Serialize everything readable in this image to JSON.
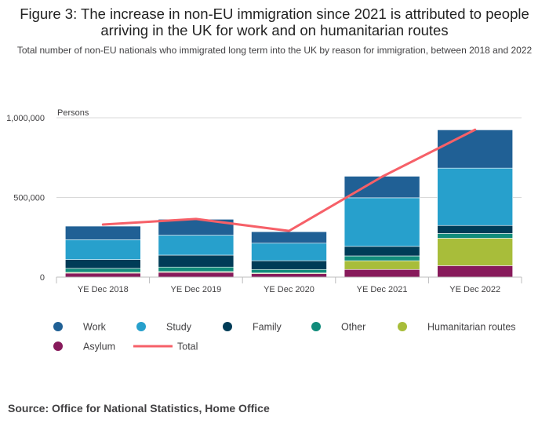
{
  "title": "Figure 3: The increase in non-EU immigration since 2021 is attributed to people arriving in the UK for work and on humanitarian routes",
  "subtitle": "Total number of non-EU nationals who immigrated long term into the UK by reason for immigration, between 2018 and 2022",
  "source": "Source: Office for National Statistics, Home Office",
  "chart_data": {
    "type": "bar",
    "stacked": true,
    "ylabel": "Persons",
    "ylim": [
      0,
      1000000
    ],
    "yticks": [
      0,
      500000,
      1000000
    ],
    "ytick_labels": [
      "0",
      "500,000",
      "1,000,000"
    ],
    "categories": [
      "YE Dec 2018",
      "YE Dec 2019",
      "YE Dec 2020",
      "YE Dec 2021",
      "YE Dec 2022"
    ],
    "series": [
      {
        "name": "Asylum",
        "color": "#871a5b",
        "values": [
          25000,
          30000,
          22000,
          48000,
          72000
        ]
      },
      {
        "name": "Humanitarian routes",
        "color": "#a8bd3a",
        "values": [
          5000,
          5000,
          4000,
          55000,
          172000
        ]
      },
      {
        "name": "Other",
        "color": "#118c7b",
        "values": [
          25000,
          28000,
          22000,
          30000,
          30000
        ]
      },
      {
        "name": "Family",
        "color": "#003c57",
        "values": [
          55000,
          75000,
          55000,
          60000,
          50000
        ]
      },
      {
        "name": "Study",
        "color": "#27a0cc",
        "values": [
          125000,
          125000,
          110000,
          305000,
          360000
        ]
      },
      {
        "name": "Work",
        "color": "#206095",
        "values": [
          85000,
          100000,
          72000,
          135000,
          240000
        ]
      }
    ],
    "total": {
      "name": "Total",
      "color": "#f66068",
      "values": [
        330000,
        365000,
        290000,
        630000,
        925000
      ]
    },
    "legend": {
      "position": "bottom",
      "order": [
        "Work",
        "Study",
        "Family",
        "Other",
        "Humanitarian routes",
        "Asylum",
        "Total"
      ]
    },
    "grid": true
  }
}
